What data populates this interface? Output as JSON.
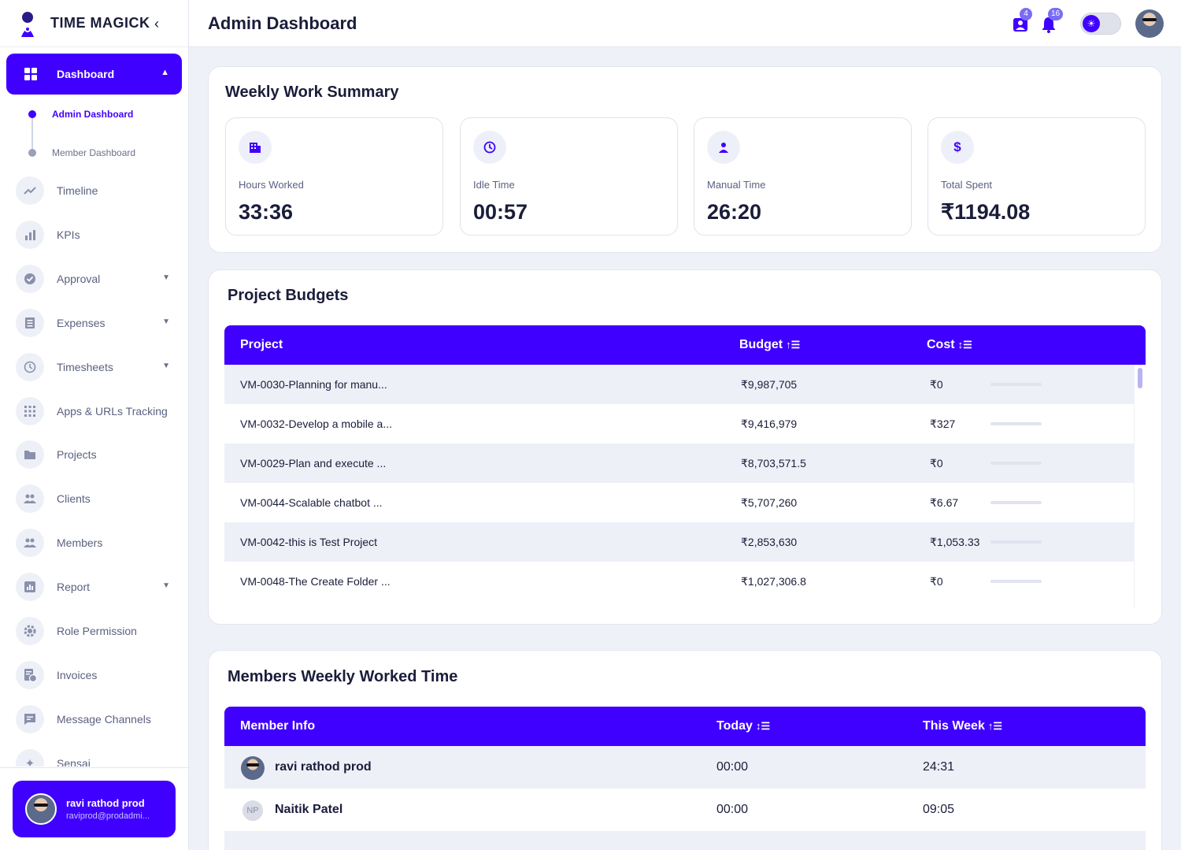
{
  "app": {
    "name": "TIME MAGICK"
  },
  "header": {
    "title": "Admin Dashboard",
    "team_badge": "4",
    "notif_badge": "16"
  },
  "sidebar": {
    "active": {
      "label": "Dashboard"
    },
    "sub_items": [
      {
        "label": "Admin Dashboard",
        "active": true
      },
      {
        "label": "Member Dashboard",
        "active": false
      }
    ],
    "items": [
      {
        "label": "Timeline",
        "icon": "trend-icon"
      },
      {
        "label": "KPIs",
        "icon": "bar-chart-icon"
      },
      {
        "label": "Approval",
        "icon": "check-circle-icon",
        "chevron": true
      },
      {
        "label": "Expenses",
        "icon": "receipt-icon",
        "chevron": true
      },
      {
        "label": "Timesheets",
        "icon": "clock-icon",
        "chevron": true
      },
      {
        "label": "Apps & URLs Tracking",
        "icon": "grid-icon"
      },
      {
        "label": "Projects",
        "icon": "folder-icon"
      },
      {
        "label": "Clients",
        "icon": "people-icon"
      },
      {
        "label": "Members",
        "icon": "people-icon"
      },
      {
        "label": "Report",
        "icon": "report-icon",
        "chevron": true
      },
      {
        "label": "Role Permission",
        "icon": "gear-icon"
      },
      {
        "label": "Invoices",
        "icon": "invoice-icon"
      },
      {
        "label": "Message Channels",
        "icon": "chat-icon"
      },
      {
        "label": "Sensai",
        "icon": "sparkle-icon"
      }
    ],
    "user": {
      "name": "ravi rathod prod",
      "email": "raviprod@prodadmi..."
    }
  },
  "weekly_summary": {
    "title": "Weekly Work Summary",
    "stats": [
      {
        "label": "Hours Worked",
        "value": "33:36",
        "icon": "building-icon"
      },
      {
        "label": "Idle Time",
        "value": "00:57",
        "icon": "clock-icon"
      },
      {
        "label": "Manual Time",
        "value": "26:20",
        "icon": "person-icon"
      },
      {
        "label": "Total Spent",
        "value": "₹1194.08",
        "icon": "dollar-icon"
      }
    ]
  },
  "project_budgets": {
    "title": "Project Budgets",
    "columns": {
      "project": "Project",
      "budget": "Budget",
      "cost": "Cost"
    },
    "rows": [
      {
        "project": "VM-0030-Planning for manu...",
        "budget": "₹9,987,705",
        "cost": "₹0"
      },
      {
        "project": "VM-0032-Develop a mobile a...",
        "budget": "₹9,416,979",
        "cost": "₹327"
      },
      {
        "project": "VM-0029-Plan and execute ...",
        "budget": "₹8,703,571.5",
        "cost": "₹0"
      },
      {
        "project": "VM-0044-Scalable chatbot ...",
        "budget": "₹5,707,260",
        "cost": "₹6.67"
      },
      {
        "project": "VM-0042-this is Test Project",
        "budget": "₹2,853,630",
        "cost": "₹1,053.33"
      },
      {
        "project": "VM-0048-The Create Folder ...",
        "budget": "₹1,027,306.8",
        "cost": "₹0"
      }
    ]
  },
  "members_time": {
    "title": "Members Weekly Worked Time",
    "columns": {
      "member": "Member Info",
      "today": "Today",
      "week": "This Week"
    },
    "rows": [
      {
        "name": "ravi rathod prod",
        "today": "00:00",
        "week": "24:31",
        "initials": ""
      },
      {
        "name": "Naitik Patel",
        "today": "00:00",
        "week": "09:05",
        "initials": "NP"
      }
    ]
  },
  "colors": {
    "accent": "#3f00ff",
    "background": "#eef2f8"
  }
}
